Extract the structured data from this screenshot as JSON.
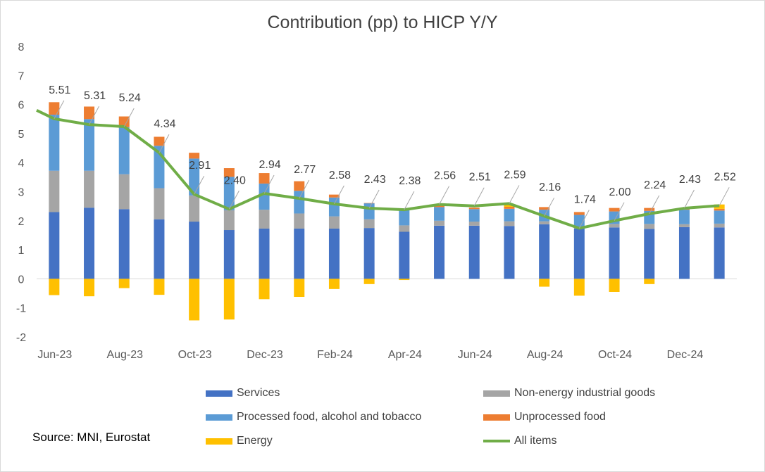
{
  "chart_data": {
    "type": "bar+line",
    "title": "Contribution (pp) to HICP Y/Y",
    "ylim": [
      -2,
      8
    ],
    "yticks": [
      8,
      7,
      6,
      5,
      4,
      3,
      2,
      1,
      0,
      -1,
      -2
    ],
    "ytick_labels": [
      "8",
      "7",
      "6",
      "5",
      "4",
      "3",
      "2",
      "1",
      "0",
      "-1",
      "-2"
    ],
    "periods": [
      "Jun-23",
      "Jul-23",
      "Aug-23",
      "Sep-23",
      "Oct-23",
      "Nov-23",
      "Dec-23",
      "Jan-24",
      "Feb-24",
      "Mar-24",
      "Apr-24",
      "May-24",
      "Jun-24",
      "Jul-24",
      "Aug-24",
      "Sep-24",
      "Oct-24",
      "Nov-24",
      "Dec-24",
      "Jan-25"
    ],
    "x_tick_labels": [
      "Jun-23",
      "Aug-23",
      "Oct-23",
      "Dec-23",
      "Feb-24",
      "Apr-24",
      "Jun-24",
      "Aug-24",
      "Oct-24",
      "Dec-24"
    ],
    "series": [
      {
        "name": "Services",
        "color": "#4472c4",
        "values": [
          2.3,
          2.45,
          2.4,
          2.05,
          1.97,
          1.68,
          1.73,
          1.73,
          1.73,
          1.75,
          1.62,
          1.83,
          1.83,
          1.82,
          1.88,
          1.73,
          1.77,
          1.72,
          1.78,
          1.77
        ]
      },
      {
        "name": "Non-energy industrial goods",
        "color": "#a5a5a5",
        "values": [
          1.42,
          1.27,
          1.2,
          1.07,
          0.9,
          0.68,
          0.65,
          0.52,
          0.42,
          0.3,
          0.22,
          0.17,
          0.14,
          0.16,
          0.1,
          0.05,
          0.12,
          0.17,
          0.1,
          0.13
        ]
      },
      {
        "name": "Processed food, alcohol and tobacco",
        "color": "#5b9bd5",
        "values": [
          1.93,
          1.78,
          1.62,
          1.46,
          1.27,
          1.15,
          0.9,
          0.78,
          0.65,
          0.55,
          0.52,
          0.47,
          0.43,
          0.43,
          0.4,
          0.42,
          0.43,
          0.45,
          0.5,
          0.45
        ]
      },
      {
        "name": "Unprocessed food",
        "color": "#ed7d31",
        "values": [
          0.43,
          0.43,
          0.37,
          0.31,
          0.2,
          0.3,
          0.36,
          0.33,
          0.1,
          0.01,
          0.0,
          0.09,
          0.05,
          0.07,
          0.09,
          0.1,
          0.12,
          0.1,
          0.04,
          0.06
        ]
      },
      {
        "name": "Energy",
        "color": "#ffc000",
        "values": [
          -0.56,
          -0.6,
          -0.32,
          -0.55,
          -1.43,
          -1.4,
          -0.7,
          -0.62,
          -0.35,
          -0.18,
          -0.04,
          0.0,
          0.0,
          0.06,
          -0.27,
          -0.58,
          -0.45,
          -0.18,
          0.0,
          0.15
        ]
      },
      {
        "name": "All items",
        "color": "#70ad47",
        "type": "line",
        "values": [
          5.51,
          5.31,
          5.24,
          4.34,
          2.91,
          2.4,
          2.94,
          2.77,
          2.58,
          2.43,
          2.38,
          2.56,
          2.51,
          2.59,
          2.16,
          1.74,
          2.0,
          2.24,
          2.43,
          2.52
        ]
      }
    ],
    "line_start_value": 5.8,
    "data_labels": [
      "5.51",
      "5.31",
      "5.24",
      "4.34",
      "2.91",
      "2.40",
      "2.94",
      "2.77",
      "2.58",
      "2.43",
      "2.38",
      "2.56",
      "2.51",
      "2.59",
      "2.16",
      "1.74",
      "2.00",
      "2.24",
      "2.43",
      "2.52"
    ],
    "legend": [
      {
        "label": "Services",
        "color": "#4472c4",
        "kind": "bar"
      },
      {
        "label": "Non-energy industrial goods",
        "color": "#a5a5a5",
        "kind": "bar"
      },
      {
        "label": "Processed food, alcohol and tobacco",
        "color": "#5b9bd5",
        "kind": "bar"
      },
      {
        "label": "Unprocessed food",
        "color": "#ed7d31",
        "kind": "bar"
      },
      {
        "label": "Energy",
        "color": "#ffc000",
        "kind": "bar"
      },
      {
        "label": "All items",
        "color": "#70ad47",
        "kind": "line"
      }
    ],
    "legend_position": "bottom",
    "grid": false
  },
  "source": "Source: MNI, Eurostat"
}
